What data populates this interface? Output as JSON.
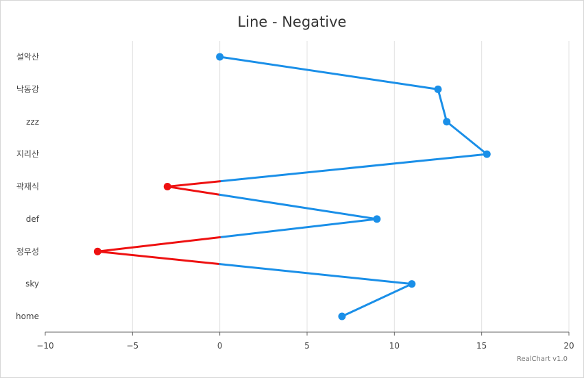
{
  "chart_data": {
    "type": "line",
    "title": "Line - Negative",
    "orientation": "horizontal",
    "categories": [
      "설악산",
      "낙동강",
      "zzz",
      "지리산",
      "곽재식",
      "def",
      "정우성",
      "sky",
      "home"
    ],
    "values": [
      0,
      12.5,
      13,
      15.3,
      -3,
      9,
      -7,
      11,
      7
    ],
    "xlim": [
      -10,
      20
    ],
    "xticks": [
      "−10",
      "−5",
      "0",
      "5",
      "10",
      "15",
      "20"
    ],
    "grid": true,
    "colors": {
      "positive": "#1a8fe8",
      "negative": "#ee1111"
    }
  },
  "credit": "RealChart v1.0"
}
